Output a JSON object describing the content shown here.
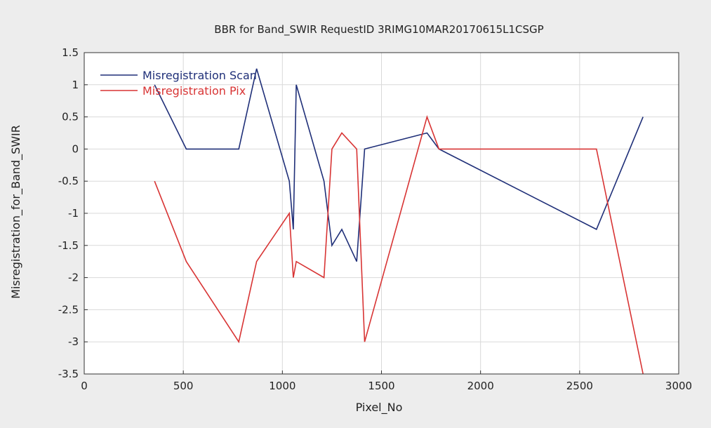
{
  "chart_data": {
    "type": "line",
    "title": "BBR for Band_SWIR RequestID 3RIMG10MAR20170615L1CSGP",
    "xlabel": "Pixel_No",
    "ylabel": "Misregistration_for_Band_SWIR",
    "xlim": [
      0,
      3000
    ],
    "ylim": [
      -3.5,
      1.5
    ],
    "xticks": [
      0,
      500,
      1000,
      1500,
      2000,
      2500,
      3000
    ],
    "yticks": [
      1.5,
      1,
      0.5,
      0,
      -0.5,
      -1,
      -1.5,
      -2,
      -2.5,
      -3,
      -3.5
    ],
    "grid": true,
    "legend_position": "top-left",
    "colors": {
      "background": "#ededed",
      "plot_area": "#ffffff",
      "grid": "#d9d9d9",
      "axis": "#333333"
    },
    "series": [
      {
        "name": "Misregistration Scan",
        "color": "#1f2f78",
        "x": [
          355,
          515,
          780,
          870,
          1035,
          1055,
          1070,
          1210,
          1250,
          1300,
          1375,
          1415,
          1730,
          1790,
          2585,
          2820
        ],
        "y": [
          1,
          0,
          0,
          1.25,
          -0.5,
          -1.25,
          1,
          -0.5,
          -1.5,
          -1.25,
          -1.75,
          0,
          0.25,
          0,
          -1.25,
          0.5
        ]
      },
      {
        "name": "Misregistration Pix",
        "color": "#d83434",
        "x": [
          355,
          515,
          780,
          870,
          1035,
          1055,
          1070,
          1210,
          1250,
          1300,
          1375,
          1415,
          1730,
          1790,
          2585,
          2820
        ],
        "y": [
          -0.5,
          -1.75,
          -3,
          -1.75,
          -1,
          -2,
          -1.75,
          -2,
          0,
          0.25,
          0,
          -3,
          0.5,
          0,
          0,
          -3.5
        ]
      }
    ]
  }
}
